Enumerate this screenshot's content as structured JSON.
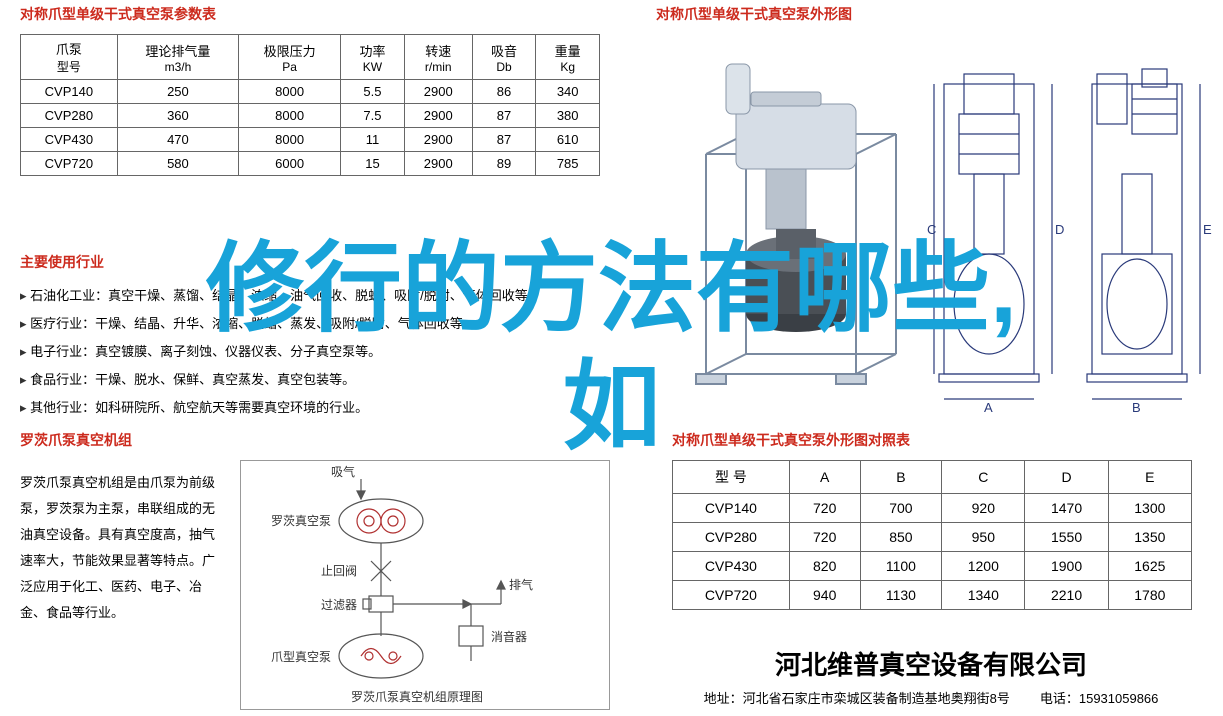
{
  "colors": {
    "title_red": "#cc2a1d",
    "text": "#333333",
    "overlay_blue": "#18a3d9",
    "border": "#666666",
    "diagram_stroke": "#555555",
    "diagram_red": "#b03030"
  },
  "param_section": {
    "title": "对称爪型单级干式真空泵参数表",
    "columns": [
      {
        "top": "爪泵",
        "bot": "型号"
      },
      {
        "top": "理论排气量",
        "bot": "m3/h"
      },
      {
        "top": "极限压力",
        "bot": "Pa"
      },
      {
        "top": "功率",
        "bot": "KW"
      },
      {
        "top": "转速",
        "bot": "r/min"
      },
      {
        "top": "吸音",
        "bot": "Db"
      },
      {
        "top": "重量",
        "bot": "Kg"
      }
    ],
    "rows": [
      [
        "CVP140",
        "250",
        "8000",
        "5.5",
        "2900",
        "86",
        "340"
      ],
      [
        "CVP280",
        "360",
        "8000",
        "7.5",
        "2900",
        "87",
        "380"
      ],
      [
        "CVP430",
        "470",
        "8000",
        "11",
        "2900",
        "87",
        "610"
      ],
      [
        "CVP720",
        "580",
        "6000",
        "15",
        "2900",
        "89",
        "785"
      ]
    ]
  },
  "industry_section": {
    "title": "主要使用行业",
    "items": [
      "石油化工业：真空干燥、蒸馏、结晶、浓缩、油气回收、脱蜡、吸附/脱附、气体回收等。",
      "医疗行业：干燥、结晶、升华、浓缩、脱蜡、蒸发、吸附/脱附、气体回收等。",
      "电子行业：真空镀膜、离子刻蚀、仪器仪表、分子真空泵等。",
      "食品行业：干燥、脱水、保鲜、真空蒸发、真空包装等。",
      "其他行业：如科研院所、航空航天等需要真空环境的行业。"
    ]
  },
  "unit_section": {
    "title": "罗茨爪泵真空机组",
    "description": "罗茨爪泵真空机组是由爪泵为前级泵，罗茨泵为主泵，串联组成的无油真空设备。具有真空度高，抽气速率大，节能效果显著等特点。广泛应用于化工、医药、电子、冶金、食品等行业。",
    "diagram": {
      "labels": {
        "intake": "吸气",
        "roots_pump": "罗茨真空泵",
        "check_valve": "止回阀",
        "filter": "过滤器",
        "exhaust": "排气",
        "silencer": "消音器",
        "claw_pump": "爪型真空泵",
        "caption": "罗茨爪泵真空机组原理图"
      }
    }
  },
  "outline_section": {
    "title": "对称爪型单级干式真空泵外形图",
    "dim_labels": [
      "A",
      "B",
      "C",
      "D",
      "E"
    ]
  },
  "dim_table_section": {
    "title": "对称爪型单级干式真空泵外形图对照表",
    "columns": [
      "型 号",
      "A",
      "B",
      "C",
      "D",
      "E"
    ],
    "rows": [
      [
        "CVP140",
        "720",
        "700",
        "920",
        "1470",
        "1300"
      ],
      [
        "CVP280",
        "720",
        "850",
        "950",
        "1550",
        "1350"
      ],
      [
        "CVP430",
        "820",
        "1100",
        "1200",
        "1900",
        "1625"
      ],
      [
        "CVP720",
        "940",
        "1130",
        "1340",
        "2210",
        "1780"
      ]
    ]
  },
  "footer": {
    "company": "河北维普真空设备有限公司",
    "address_label": "地址：",
    "address": "河北省石家庄市栾城区装备制造基地奥翔街8号",
    "phone_label": "电话：",
    "phone": "15931059866"
  },
  "overlay": {
    "line1": "修行的方法有哪些,",
    "line2": "如"
  }
}
